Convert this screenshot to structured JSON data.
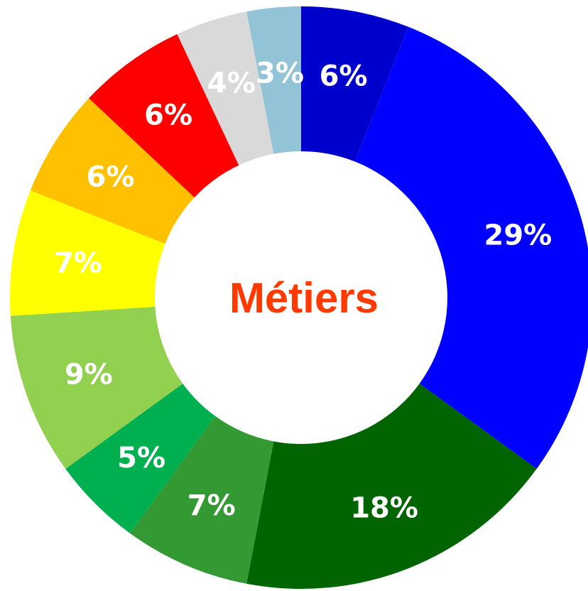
{
  "chart_data": {
    "type": "pie",
    "title": "Métiers",
    "labels": [
      "6%",
      "29%",
      "18%",
      "7%",
      "5%",
      "9%",
      "7%",
      "6%",
      "6%",
      "4%",
      "3%"
    ],
    "values": [
      6,
      29,
      18,
      7,
      5,
      9,
      7,
      6,
      6,
      4,
      3
    ],
    "colors": [
      "#0000cc",
      "#0000ff",
      "#006400",
      "#339933",
      "#00b050",
      "#92d050",
      "#ffff00",
      "#ffc000",
      "#ff0000",
      "#d9d9d9",
      "#92c3d6"
    ],
    "label_color": "#ffffff",
    "title_color": "#ff3a00",
    "start_angle_deg": 0,
    "direction": "clockwise"
  }
}
